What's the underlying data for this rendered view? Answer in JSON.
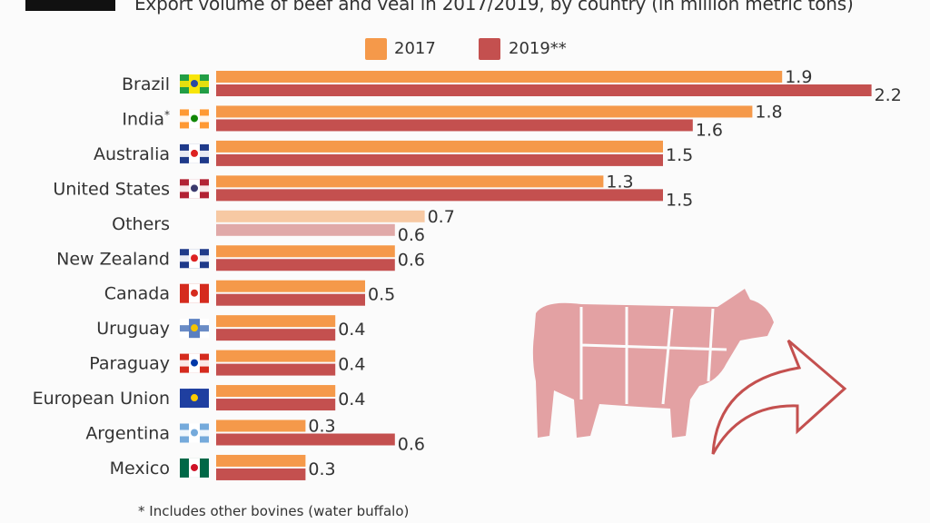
{
  "title": "Export volume of beef and veal in 2017/2019, by country (in million metric tons)",
  "footnote": "*   Includes other bovines (water buffalo)",
  "chart_data": {
    "type": "bar",
    "orientation": "horizontal",
    "title": "Export volume of beef and veal in 2017/2019, by country (in million metric tons)",
    "categories": [
      "Brazil",
      "India*",
      "Australia",
      "United States",
      "Others",
      "New Zealand",
      "Canada",
      "Uruguay",
      "Paraguay",
      "European Union",
      "Argentina",
      "Mexico"
    ],
    "series": [
      {
        "name": "2017",
        "color": "#f5994a",
        "values": [
          1.9,
          1.8,
          1.5,
          1.3,
          0.7,
          0.6,
          0.5,
          0.4,
          0.4,
          0.4,
          0.3,
          0.3
        ]
      },
      {
        "name": "2019**",
        "color": "#c4504f",
        "values": [
          2.2,
          1.6,
          1.5,
          1.5,
          0.6,
          0.6,
          0.5,
          0.4,
          0.4,
          0.4,
          0.6,
          0.3
        ]
      }
    ],
    "others_colors": [
      "#f7c9a3",
      "#e0a9a8"
    ],
    "xlim": [
      0,
      2.3
    ],
    "grid": false,
    "legend": "top-center",
    "flags": {
      "Brazil": [
        "#229e45",
        "#f8e509",
        "#2b49a3"
      ],
      "India*": [
        "#ff9933",
        "#ffffff",
        "#138808"
      ],
      "Australia": [
        "#1f3a8a",
        "#ffffff",
        "#d22"
      ],
      "United States": [
        "#b22234",
        "#ffffff",
        "#3c3b6e"
      ],
      "New Zealand": [
        "#1f3a8a",
        "#ffffff",
        "#d22"
      ],
      "Canada": [
        "#d52b1e",
        "#ffffff",
        "#d52b1e"
      ],
      "Uruguay": [
        "#ffffff",
        "#5a7fc0",
        "#f5c400"
      ],
      "Paraguay": [
        "#d52b1e",
        "#ffffff",
        "#0038a8"
      ],
      "European Union": [
        "#1f3fa0",
        "#1f3fa0",
        "#ffcc00"
      ],
      "Argentina": [
        "#75aadb",
        "#ffffff",
        "#75aadb"
      ],
      "Mexico": [
        "#006847",
        "#ffffff",
        "#ce1126"
      ]
    }
  }
}
